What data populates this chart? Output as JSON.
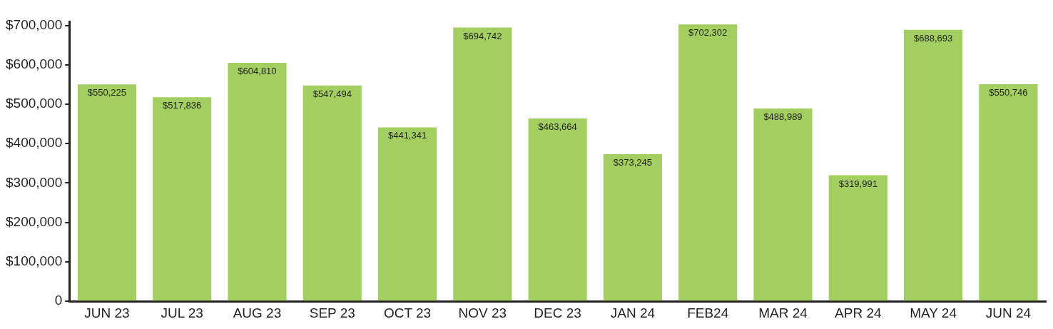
{
  "chart_data": {
    "type": "bar",
    "categories": [
      "JUN 23",
      "JUL 23",
      "AUG 23",
      "SEP 23",
      "OCT 23",
      "NOV 23",
      "DEC 23",
      "JAN 24",
      "FEB24",
      "MAR 24",
      "APR 24",
      "MAY 24",
      "JUN 24"
    ],
    "values": [
      550225,
      517836,
      604810,
      547494,
      441341,
      694742,
      463664,
      373245,
      702302,
      488989,
      319991,
      688693,
      550746
    ],
    "color": "#a2cf5f",
    "value_labels": [
      "$550,225",
      "$517,836",
      "$604,810",
      "$547,494",
      "$441,341",
      "$694,742",
      "$463,664",
      "$373,245",
      "$702,302",
      "$488,989",
      "$319,991",
      "$688,693",
      "$550,746"
    ],
    "ylim": [
      0,
      710000
    ],
    "yticks": [
      {
        "value": 0,
        "label": "0"
      },
      {
        "value": 100000,
        "label": "$100,000"
      },
      {
        "value": 200000,
        "label": "$200,000"
      },
      {
        "value": 300000,
        "label": "$300,000"
      },
      {
        "value": 400000,
        "label": "$400,000"
      },
      {
        "value": 500000,
        "label": "$500,000"
      },
      {
        "value": 600000,
        "label": "$600,000"
      },
      {
        "value": 700000,
        "label": "$700,000"
      }
    ],
    "grid": false,
    "legend": false
  }
}
